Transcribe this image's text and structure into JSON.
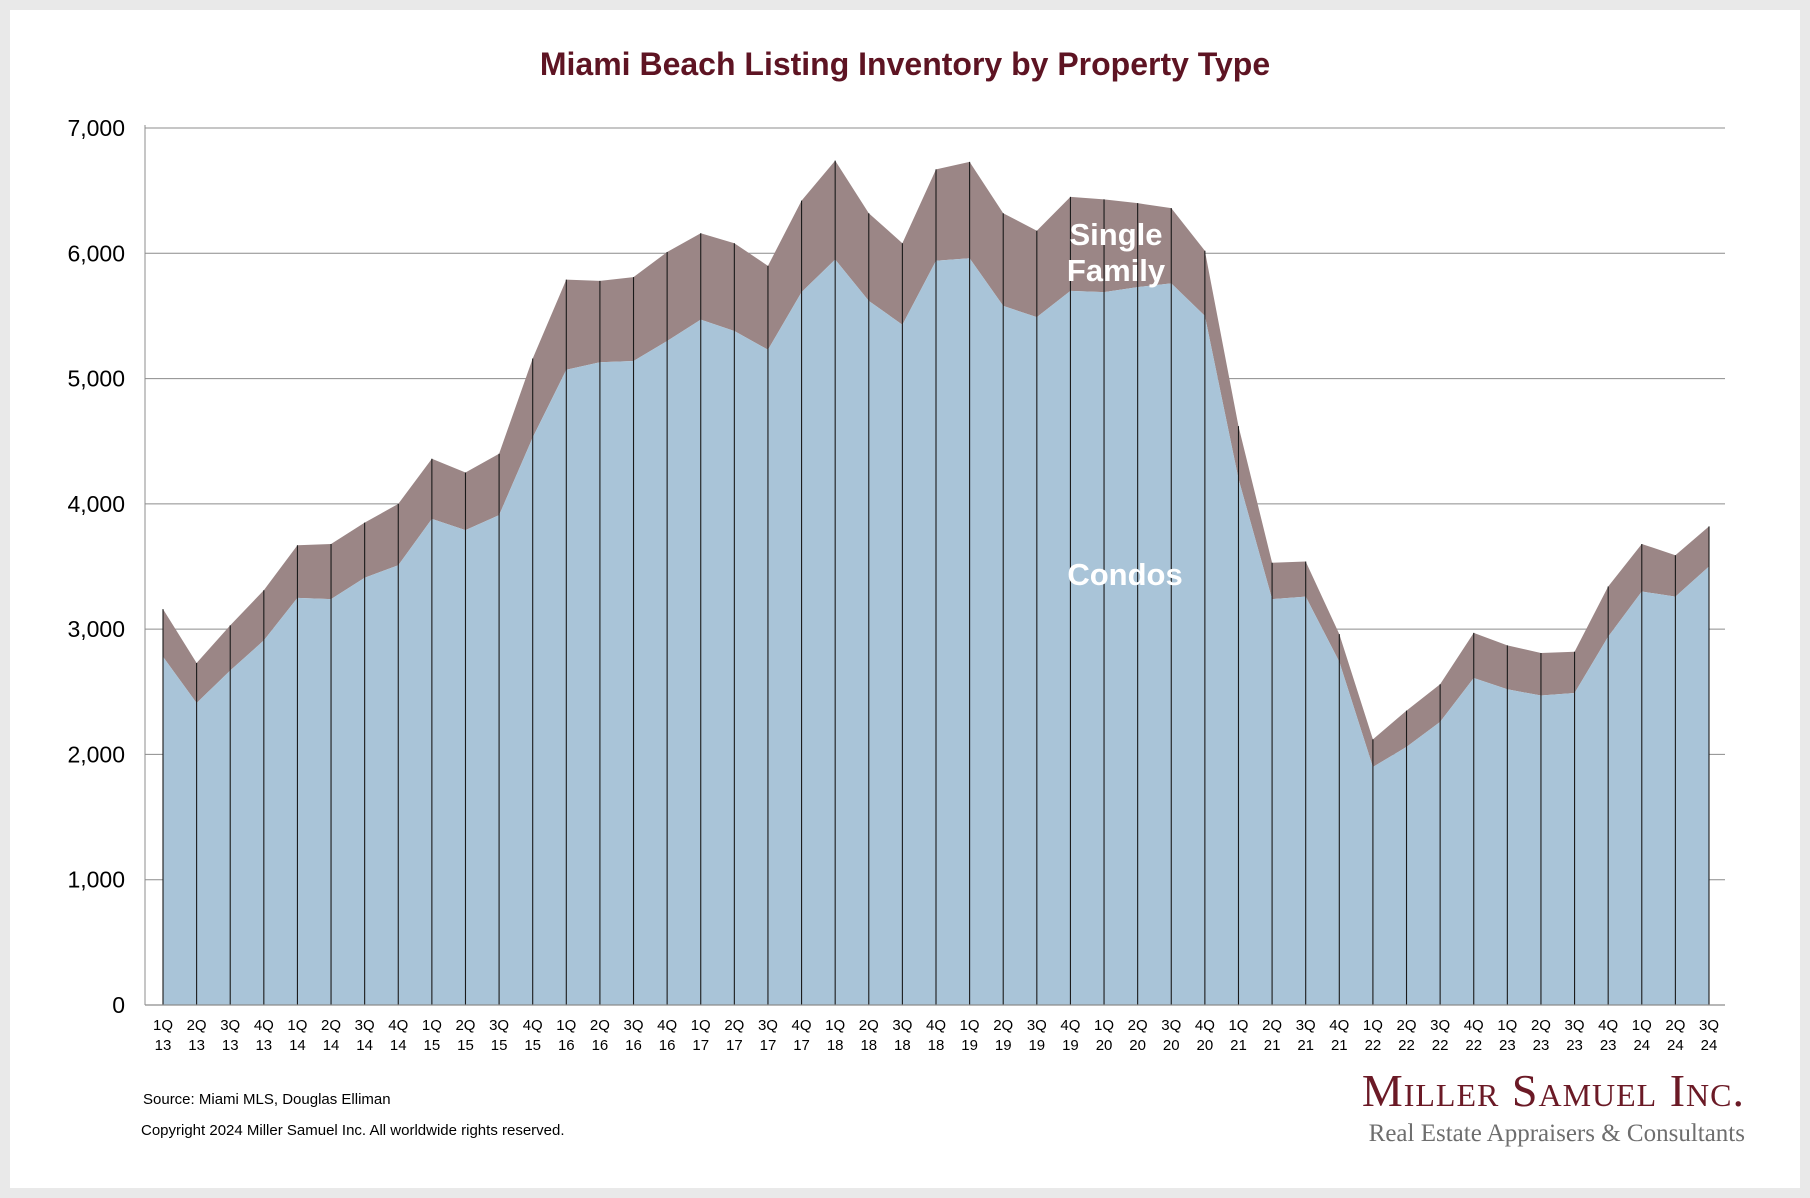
{
  "chart_data": {
    "type": "area",
    "stacked": true,
    "title": "Miami Beach Listing Inventory by Property Type",
    "xlabel": "",
    "ylabel": "",
    "ylim": [
      0,
      7000
    ],
    "yticks": [
      "0",
      "1,000",
      "2,000",
      "3,000",
      "4,000",
      "5,000",
      "6,000",
      "7,000"
    ],
    "ytick_values": [
      0,
      1000,
      2000,
      3000,
      4000,
      5000,
      6000,
      7000
    ],
    "grid": true,
    "categories": [
      [
        "1Q",
        "13"
      ],
      [
        "2Q",
        "13"
      ],
      [
        "3Q",
        "13"
      ],
      [
        "4Q",
        "13"
      ],
      [
        "1Q",
        "14"
      ],
      [
        "2Q",
        "14"
      ],
      [
        "3Q",
        "14"
      ],
      [
        "4Q",
        "14"
      ],
      [
        "1Q",
        "15"
      ],
      [
        "2Q",
        "15"
      ],
      [
        "3Q",
        "15"
      ],
      [
        "4Q",
        "15"
      ],
      [
        "1Q",
        "16"
      ],
      [
        "2Q",
        "16"
      ],
      [
        "3Q",
        "16"
      ],
      [
        "4Q",
        "16"
      ],
      [
        "1Q",
        "17"
      ],
      [
        "2Q",
        "17"
      ],
      [
        "3Q",
        "17"
      ],
      [
        "4Q",
        "17"
      ],
      [
        "1Q",
        "18"
      ],
      [
        "2Q",
        "18"
      ],
      [
        "3Q",
        "18"
      ],
      [
        "4Q",
        "18"
      ],
      [
        "1Q",
        "19"
      ],
      [
        "2Q",
        "19"
      ],
      [
        "3Q",
        "19"
      ],
      [
        "4Q",
        "19"
      ],
      [
        "1Q",
        "20"
      ],
      [
        "2Q",
        "20"
      ],
      [
        "3Q",
        "20"
      ],
      [
        "4Q",
        "20"
      ],
      [
        "1Q",
        "21"
      ],
      [
        "2Q",
        "21"
      ],
      [
        "3Q",
        "21"
      ],
      [
        "4Q",
        "21"
      ],
      [
        "1Q",
        "22"
      ],
      [
        "2Q",
        "22"
      ],
      [
        "3Q",
        "22"
      ],
      [
        "4Q",
        "22"
      ],
      [
        "1Q",
        "23"
      ],
      [
        "2Q",
        "23"
      ],
      [
        "3Q",
        "23"
      ],
      [
        "4Q",
        "23"
      ],
      [
        "1Q",
        "24"
      ],
      [
        "2Q",
        "24"
      ],
      [
        "3Q",
        "24"
      ]
    ],
    "series": [
      {
        "name": "Condos",
        "color": "#a9c4d8",
        "values": [
          2780,
          2410,
          2670,
          2910,
          3250,
          3240,
          3410,
          3510,
          3880,
          3790,
          3910,
          4530,
          5070,
          5130,
          5140,
          5300,
          5470,
          5380,
          5230,
          5690,
          5950,
          5620,
          5430,
          5940,
          5960,
          5580,
          5490,
          5700,
          5690,
          5730,
          5760,
          5500,
          4200,
          3240,
          3260,
          2740,
          1900,
          2060,
          2260,
          2610,
          2520,
          2470,
          2490,
          2940,
          3300,
          3260,
          3500
        ]
      },
      {
        "name": "Single Family",
        "color": "#9b8686",
        "values": [
          380,
          320,
          360,
          400,
          420,
          440,
          440,
          490,
          480,
          460,
          490,
          630,
          720,
          650,
          670,
          710,
          690,
          700,
          670,
          730,
          790,
          700,
          650,
          730,
          770,
          740,
          690,
          750,
          740,
          670,
          600,
          520,
          420,
          290,
          280,
          220,
          220,
          290,
          300,
          360,
          350,
          340,
          330,
          400,
          380,
          330,
          320
        ]
      }
    ],
    "series_labels": {
      "single_family_line1": "Single",
      "single_family_line2": "Family",
      "condos": "Condos"
    }
  },
  "footer": {
    "source": "Source: Miami MLS, Douglas Elliman",
    "copyright": "Copyright 2024 Miller Samuel Inc.  All worldwide rights reserved."
  },
  "logo": {
    "name": "Miller Samuel Inc.",
    "tagline": "Real Estate Appraisers & Consultants"
  },
  "colors": {
    "title": "#5e1423",
    "condos": "#a9c4d8",
    "single_family": "#9b8686",
    "gridline": "#8c8c8c"
  }
}
